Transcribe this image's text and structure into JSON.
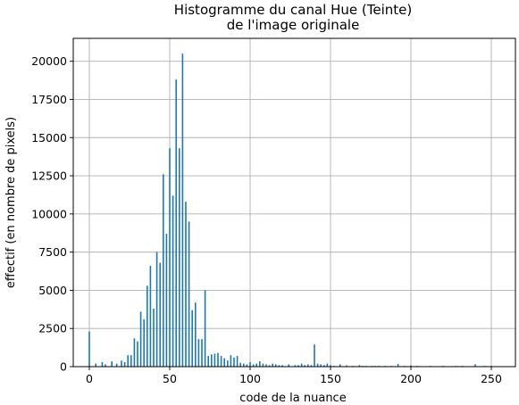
{
  "chart_data": {
    "type": "bar",
    "title": [
      "Histogramme du canal Hue (Teinte)",
      "de l'image originale"
    ],
    "xlabel": "code de la nuance",
    "ylabel": "effectif (en nombre de pixels)",
    "xlim": [
      -10,
      265
    ],
    "ylim": [
      0,
      21500
    ],
    "xticks": [
      0,
      50,
      100,
      150,
      200,
      250
    ],
    "yticks": [
      0,
      2500,
      5000,
      7500,
      10000,
      12500,
      15000,
      17500,
      20000
    ],
    "grid": true,
    "bar_color": "#1f77b4",
    "x": [
      0,
      4,
      8,
      10,
      14,
      17,
      20,
      22,
      24,
      26,
      28,
      30,
      32,
      34,
      36,
      38,
      40,
      42,
      44,
      46,
      48,
      50,
      52,
      54,
      56,
      58,
      60,
      62,
      64,
      66,
      68,
      70,
      72,
      74,
      76,
      78,
      80,
      82,
      84,
      86,
      88,
      90,
      92,
      94,
      96,
      98,
      100,
      102,
      104,
      106,
      108,
      110,
      112,
      114,
      116,
      118,
      120,
      124,
      128,
      130,
      132,
      134,
      136,
      138,
      140,
      142,
      144,
      146,
      148,
      150,
      152,
      156,
      160,
      164,
      168,
      170,
      172,
      176,
      178,
      180,
      184,
      188,
      192,
      196,
      200,
      204,
      212,
      220,
      228,
      232,
      240,
      246,
      250
    ],
    "values": [
      2300,
      200,
      300,
      150,
      350,
      200,
      400,
      300,
      750,
      750,
      1850,
      1650,
      3600,
      3100,
      5300,
      6600,
      3800,
      7500,
      6800,
      12600,
      8700,
      14300,
      11200,
      18800,
      14300,
      20500,
      10800,
      9500,
      3700,
      4200,
      1800,
      1800,
      5000,
      700,
      800,
      850,
      900,
      700,
      550,
      400,
      750,
      600,
      700,
      250,
      200,
      150,
      300,
      150,
      200,
      350,
      200,
      150,
      100,
      200,
      150,
      100,
      100,
      150,
      100,
      100,
      200,
      100,
      150,
      100,
      1450,
      200,
      150,
      100,
      200,
      100,
      50,
      150,
      80,
      50,
      100,
      50,
      50,
      50,
      50,
      50,
      50,
      50,
      180,
      50,
      80,
      50,
      50,
      50,
      50,
      50,
      150,
      50,
      50
    ]
  }
}
